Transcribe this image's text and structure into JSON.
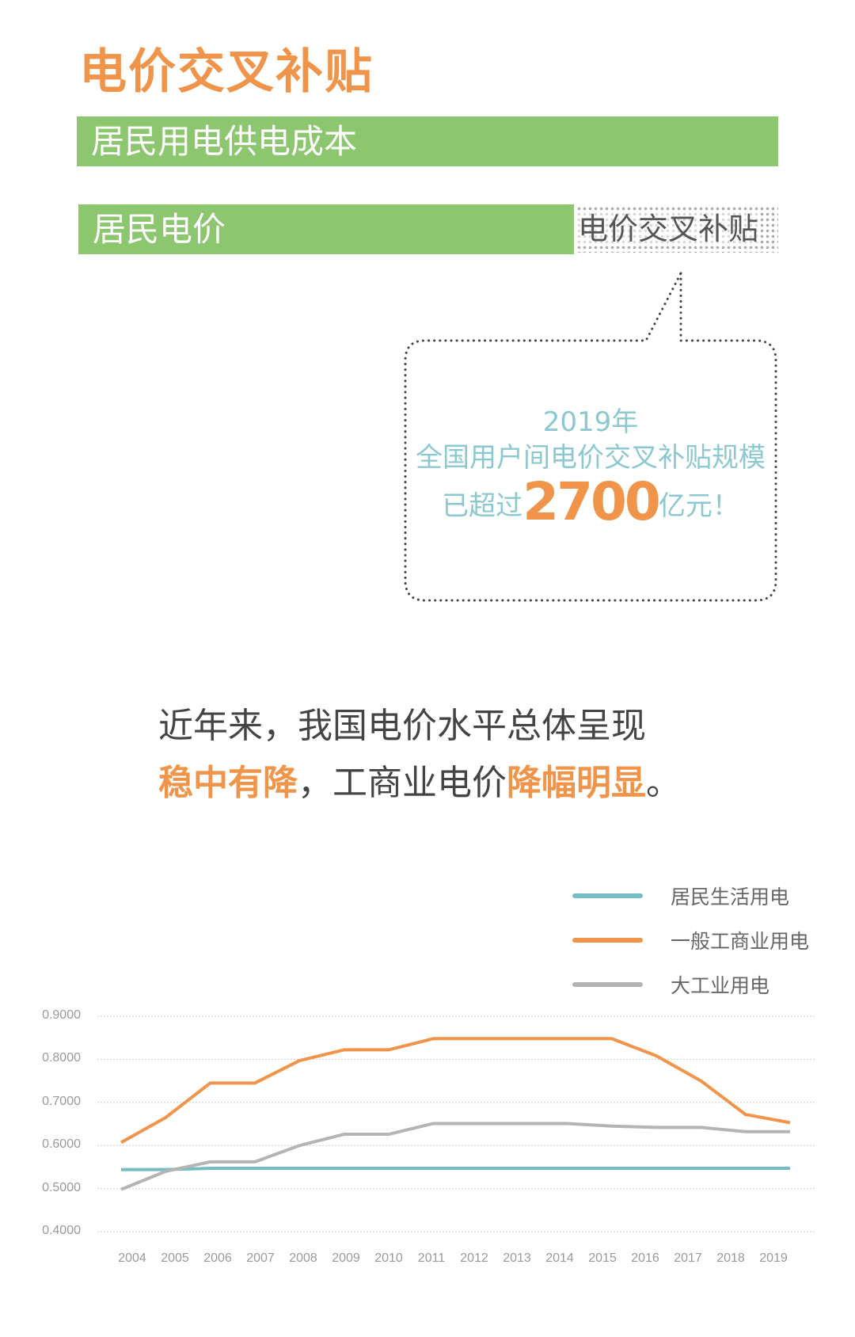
{
  "title": "电价交叉补贴",
  "bars": {
    "cost_label": "居民用电供电成本",
    "price_label": "居民电价",
    "subsidy_label": "电价交叉补贴"
  },
  "callout": {
    "line1": "2019年",
    "line2": "全国用户间电价交叉补贴规模",
    "line3_prefix": "已超过",
    "amount": "2700",
    "line3_suffix": "亿元！"
  },
  "paragraph": {
    "line1": "近年来，我国电价水平总体呈现",
    "hl1": "稳中有降",
    "mid": "，工商业电价",
    "hl2": "降幅明显",
    "end": "。"
  },
  "colors": {
    "orange": "#f0944a",
    "green": "#8cc66e",
    "teal": "#76bcc4",
    "gray": "#b4b4b4"
  },
  "chart_data": {
    "type": "line",
    "categories": [
      "2004",
      "2005",
      "2006",
      "2007",
      "2008",
      "2009",
      "2010",
      "2011",
      "2012",
      "2013",
      "2014",
      "2015",
      "2016",
      "2017",
      "2018",
      "2019"
    ],
    "y_ticks": [
      "0.9000",
      "0.8000",
      "0.7000",
      "0.6000",
      "0.5000",
      "0.4000"
    ],
    "ylim": [
      0.4,
      0.9
    ],
    "grid": true,
    "legend_position": "top-right",
    "series": [
      {
        "name": "居民生活用电",
        "color": "#76bcc4",
        "values": [
          0.544,
          0.544,
          0.547,
          0.547,
          0.547,
          0.547,
          0.547,
          0.547,
          0.547,
          0.547,
          0.547,
          0.547,
          0.547,
          0.547,
          0.547,
          0.547
        ]
      },
      {
        "name": "一般工商业用电",
        "color": "#f0944a",
        "values": [
          0.607,
          0.665,
          0.745,
          0.745,
          0.797,
          0.822,
          0.822,
          0.848,
          0.848,
          0.848,
          0.848,
          0.848,
          0.808,
          0.75,
          0.672,
          0.653
        ]
      },
      {
        "name": "大工业用电",
        "color": "#b4b4b4",
        "values": [
          0.498,
          0.54,
          0.562,
          0.562,
          0.6,
          0.626,
          0.626,
          0.651,
          0.651,
          0.651,
          0.651,
          0.645,
          0.642,
          0.642,
          0.632,
          0.632
        ]
      }
    ]
  }
}
